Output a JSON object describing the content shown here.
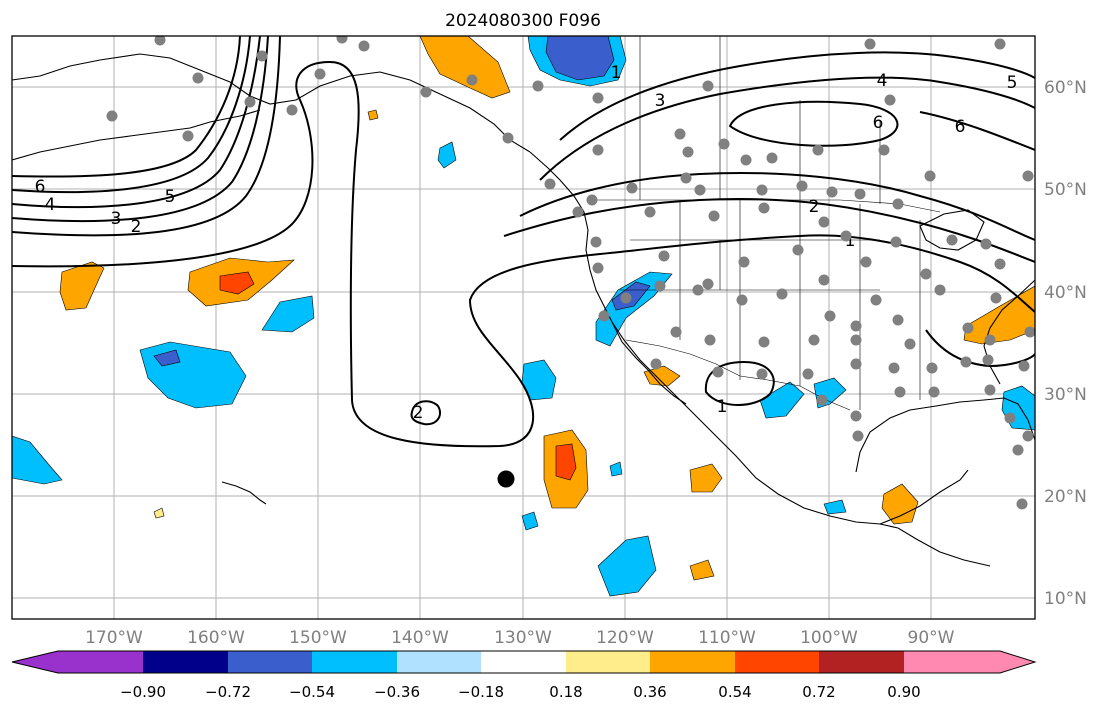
{
  "title": "2024080300 F096",
  "lon_ticks": [
    "170°W",
    "160°W",
    "150°W",
    "140°W",
    "130°W",
    "120°W",
    "110°W",
    "100°W",
    "90°W"
  ],
  "lat_ticks": [
    "60°N",
    "50°N",
    "40°N",
    "30°N",
    "20°N",
    "10°N"
  ],
  "contour_labels": [
    "6",
    "4",
    "3",
    "2",
    "5",
    "1",
    "3",
    "4",
    "5",
    "6",
    "6",
    "2",
    "1",
    "1",
    "2"
  ],
  "colorbar": {
    "ticks": [
      "−0.90",
      "−0.72",
      "−0.54",
      "−0.36",
      "−0.18",
      "0.18",
      "0.36",
      "0.54",
      "0.72",
      "0.90"
    ],
    "colors": [
      "#9932cc",
      "#00008b",
      "#3a5fcd",
      "#00bfff",
      "#b0e2ff",
      "#ffffff",
      "#ffec8b",
      "#ffa500",
      "#ff4500",
      "#b22222",
      "#ff89b0"
    ]
  },
  "shading_colors": {
    "light_blue": "#00bfff",
    "medium_blue": "#3a5fcd",
    "orange": "#ffa500",
    "red_orange": "#ff4500",
    "yellow": "#ffec8b"
  }
}
